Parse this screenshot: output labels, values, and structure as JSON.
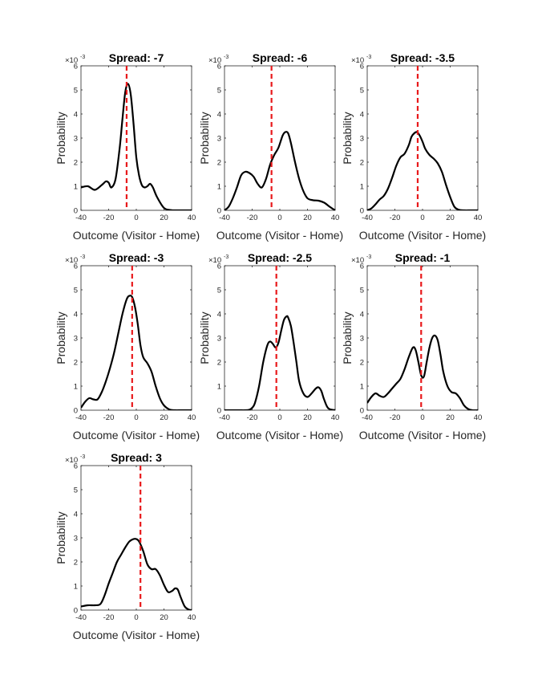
{
  "chart_data": [
    {
      "type": "line",
      "title": "Spread: -7",
      "xlabel": "Outcome (Visitor - Home)",
      "ylabel": "Probability",
      "exponent_label": "×10",
      "exponent": "-3",
      "xlim": [
        -40,
        40
      ],
      "ylim": [
        0,
        6
      ],
      "xticks": [
        -40,
        -20,
        0,
        20,
        40
      ],
      "yticks": [
        0,
        1,
        2,
        3,
        4,
        5,
        6
      ],
      "spread_line": -7,
      "x": [
        -40,
        -35,
        -30,
        -25,
        -22,
        -20,
        -18,
        -15,
        -12,
        -10,
        -8,
        -6,
        -4,
        -2,
        0,
        2,
        4,
        6,
        8,
        10,
        12,
        15,
        20,
        25,
        30,
        35,
        40
      ],
      "y": [
        0.95,
        1.0,
        0.85,
        1.05,
        1.2,
        1.15,
        0.95,
        1.3,
        2.6,
        3.8,
        4.9,
        5.25,
        4.8,
        3.6,
        2.2,
        1.45,
        1.05,
        0.95,
        1.0,
        1.1,
        0.95,
        0.55,
        0.1,
        0.01,
        0,
        0,
        0
      ]
    },
    {
      "type": "line",
      "title": "Spread: -6",
      "xlabel": "Outcome (Visitor - Home)",
      "ylabel": "Probability",
      "exponent_label": "×10",
      "exponent": "-3",
      "xlim": [
        -40,
        40
      ],
      "ylim": [
        0,
        6
      ],
      "xticks": [
        -40,
        -20,
        0,
        20,
        40
      ],
      "yticks": [
        0,
        1,
        2,
        3,
        4,
        5,
        6
      ],
      "spread_line": -6,
      "x": [
        -40,
        -37,
        -34,
        -31,
        -28,
        -25,
        -22,
        -19,
        -16,
        -13,
        -10,
        -7,
        -4,
        -1,
        2,
        4,
        6,
        8,
        11,
        14,
        17,
        20,
        24,
        28,
        32,
        36,
        40
      ],
      "y": [
        0,
        0.15,
        0.5,
        0.95,
        1.45,
        1.6,
        1.55,
        1.4,
        1.1,
        0.95,
        1.3,
        1.9,
        2.3,
        2.6,
        3.1,
        3.25,
        3.2,
        2.8,
        2.0,
        1.3,
        0.8,
        0.5,
        0.42,
        0.4,
        0.32,
        0.15,
        0
      ]
    },
    {
      "type": "line",
      "title": "Spread: -3.5",
      "xlabel": "Outcome (Visitor - Home)",
      "ylabel": "Probability",
      "exponent_label": "×10",
      "exponent": "-3",
      "xlim": [
        -40,
        40
      ],
      "ylim": [
        0,
        6
      ],
      "xticks": [
        -40,
        -20,
        0,
        20,
        40
      ],
      "yticks": [
        0,
        1,
        2,
        3,
        4,
        5,
        6
      ],
      "spread_line": -3.5,
      "x": [
        -40,
        -37,
        -34,
        -31,
        -28,
        -25,
        -22,
        -19,
        -16,
        -13,
        -10,
        -8,
        -6,
        -4,
        -2,
        0,
        2,
        5,
        8,
        11,
        14,
        17,
        20,
        23,
        26,
        30,
        35,
        40
      ],
      "y": [
        0,
        0.08,
        0.25,
        0.45,
        0.6,
        0.9,
        1.35,
        1.85,
        2.2,
        2.35,
        2.7,
        3.05,
        3.2,
        3.25,
        3.1,
        2.85,
        2.55,
        2.3,
        2.15,
        1.95,
        1.6,
        1.05,
        0.55,
        0.15,
        0.03,
        0,
        0,
        0
      ]
    },
    {
      "type": "line",
      "title": "Spread: -3",
      "xlabel": "Outcome (Visitor - Home)",
      "ylabel": "Probability",
      "exponent_label": "×10",
      "exponent": "-3",
      "xlim": [
        -40,
        40
      ],
      "ylim": [
        0,
        6
      ],
      "xticks": [
        -40,
        -20,
        0,
        20,
        40
      ],
      "yticks": [
        0,
        1,
        2,
        3,
        4,
        5,
        6
      ],
      "spread_line": -3,
      "x": [
        -40,
        -37,
        -34,
        -31,
        -28,
        -25,
        -22,
        -19,
        -16,
        -13,
        -10,
        -7,
        -5,
        -3,
        -1,
        1,
        3,
        5,
        8,
        11,
        14,
        17,
        20,
        24,
        28,
        32,
        36,
        40
      ],
      "y": [
        0.1,
        0.35,
        0.5,
        0.45,
        0.45,
        0.75,
        1.2,
        1.75,
        2.4,
        3.2,
        4.0,
        4.6,
        4.75,
        4.7,
        4.3,
        3.6,
        2.7,
        2.2,
        1.95,
        1.6,
        1.0,
        0.5,
        0.2,
        0.03,
        0,
        0,
        0,
        0
      ]
    },
    {
      "type": "line",
      "title": "Spread: -2.5",
      "xlabel": "Outcome (Visitor - Home)",
      "ylabel": "Probability",
      "exponent_label": "×10",
      "exponent": "-3",
      "xlim": [
        -40,
        40
      ],
      "ylim": [
        0,
        6
      ],
      "xticks": [
        -40,
        -20,
        0,
        20,
        40
      ],
      "yticks": [
        0,
        1,
        2,
        3,
        4,
        5,
        6
      ],
      "spread_line": -2.5,
      "x": [
        -40,
        -30,
        -25,
        -22,
        -20,
        -18,
        -15,
        -12,
        -9,
        -7,
        -5,
        -3,
        -1,
        1,
        3,
        5,
        6,
        8,
        10,
        12,
        14,
        17,
        20,
        23,
        26,
        28,
        30,
        32,
        35,
        40
      ],
      "y": [
        0,
        0,
        0,
        0.02,
        0.1,
        0.3,
        1.0,
        2.0,
        2.7,
        2.85,
        2.75,
        2.6,
        2.8,
        3.3,
        3.75,
        3.9,
        3.85,
        3.5,
        2.8,
        2.0,
        1.2,
        0.7,
        0.55,
        0.7,
        0.9,
        0.95,
        0.8,
        0.45,
        0.08,
        0
      ]
    },
    {
      "type": "line",
      "title": "Spread: -1",
      "xlabel": "Outcome (Visitor - Home)",
      "ylabel": "Probability",
      "exponent_label": "×10",
      "exponent": "-3",
      "xlim": [
        -40,
        40
      ],
      "ylim": [
        0,
        6
      ],
      "xticks": [
        -40,
        -20,
        0,
        20,
        40
      ],
      "yticks": [
        0,
        1,
        2,
        3,
        4,
        5,
        6
      ],
      "spread_line": -1,
      "x": [
        -40,
        -37,
        -34,
        -31,
        -28,
        -25,
        -22,
        -19,
        -16,
        -13,
        -10,
        -7,
        -5,
        -3,
        -1,
        1,
        3,
        5,
        7,
        9,
        11,
        13,
        15,
        18,
        21,
        24,
        27,
        30,
        33,
        36,
        40
      ],
      "y": [
        0.3,
        0.55,
        0.7,
        0.6,
        0.55,
        0.7,
        0.9,
        1.1,
        1.3,
        1.7,
        2.2,
        2.6,
        2.5,
        2.0,
        1.45,
        1.4,
        2.0,
        2.6,
        3.0,
        3.1,
        2.9,
        2.3,
        1.6,
        1.0,
        0.75,
        0.7,
        0.5,
        0.2,
        0.05,
        0,
        0
      ]
    },
    {
      "type": "line",
      "title": "Spread: 3",
      "xlabel": "Outcome (Visitor - Home)",
      "ylabel": "Probability",
      "exponent_label": "×10",
      "exponent": "-3",
      "xlim": [
        -40,
        40
      ],
      "ylim": [
        0,
        6
      ],
      "xticks": [
        -40,
        -20,
        0,
        20,
        40
      ],
      "yticks": [
        0,
        1,
        2,
        3,
        4,
        5,
        6
      ],
      "spread_line": 3,
      "x": [
        -40,
        -35,
        -30,
        -26,
        -23,
        -20,
        -17,
        -14,
        -11,
        -8,
        -5,
        -2,
        0,
        2,
        5,
        8,
        11,
        14,
        17,
        20,
        23,
        26,
        28,
        30,
        32,
        35,
        38,
        40
      ],
      "y": [
        0.15,
        0.2,
        0.2,
        0.25,
        0.6,
        1.1,
        1.55,
        2.0,
        2.3,
        2.6,
        2.85,
        2.95,
        2.95,
        2.85,
        2.45,
        1.9,
        1.7,
        1.7,
        1.45,
        1.05,
        0.75,
        0.8,
        0.9,
        0.85,
        0.55,
        0.15,
        0.02,
        0
      ]
    }
  ]
}
